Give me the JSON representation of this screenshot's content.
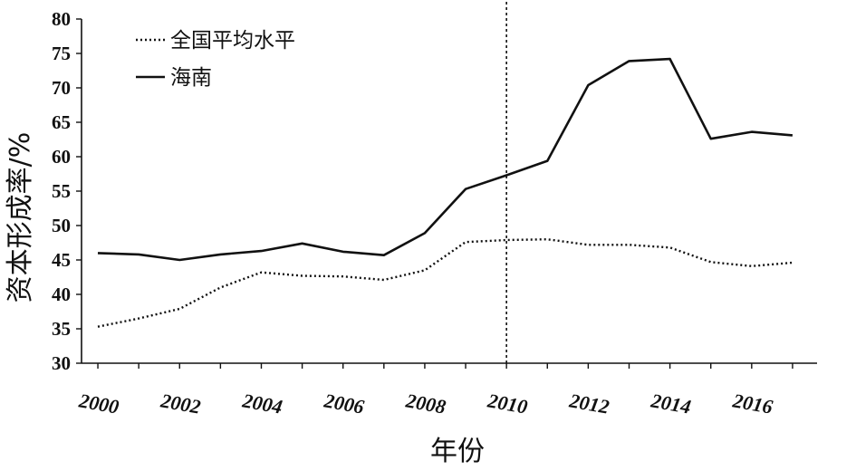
{
  "chart_data": {
    "type": "line",
    "title": "",
    "xlabel": "年份",
    "ylabel": "资本形成率/%",
    "x": [
      2000,
      2001,
      2002,
      2003,
      2004,
      2005,
      2006,
      2007,
      2008,
      2009,
      2010,
      2011,
      2012,
      2013,
      2014,
      2015,
      2016,
      2017
    ],
    "x_tick_labels": [
      "2000",
      "2002",
      "2004",
      "2006",
      "2008",
      "2010",
      "2012",
      "2014",
      "2016"
    ],
    "xlim": [
      1999.6,
      2017.6
    ],
    "ylim": [
      30,
      80
    ],
    "y_ticks": [
      30,
      35,
      40,
      45,
      50,
      55,
      60,
      65,
      70,
      75,
      80
    ],
    "grid": false,
    "legend_position": "top-left",
    "reference_line_x": 2010,
    "series": [
      {
        "name": "全国平均水平",
        "style": "dotted",
        "color": "#111111",
        "values": [
          35.3,
          36.5,
          37.9,
          41.0,
          43.2,
          42.7,
          42.6,
          42.1,
          43.5,
          47.6,
          47.9,
          48.0,
          47.2,
          47.2,
          46.8,
          44.7,
          44.1,
          44.6
        ]
      },
      {
        "name": "海南",
        "style": "solid",
        "color": "#111111",
        "values": [
          46.0,
          45.8,
          45.0,
          45.8,
          46.3,
          47.4,
          46.2,
          45.7,
          48.9,
          55.3,
          57.3,
          59.4,
          70.4,
          73.9,
          74.2,
          62.6,
          63.6,
          63.1
        ]
      }
    ]
  }
}
